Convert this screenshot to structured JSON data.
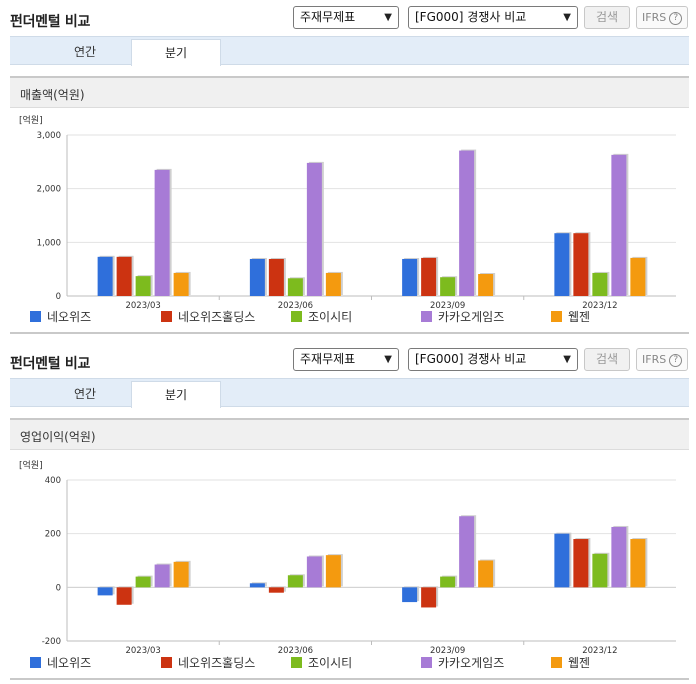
{
  "colors": {
    "series": [
      "#2f6fdb",
      "#cc3311",
      "#7dbb1e",
      "#a77bd6",
      "#f49a0f"
    ]
  },
  "sections": [
    {
      "title": "펀더멘털 비교",
      "select_type": "주재무제표",
      "select_compare": "[FG000] 경쟁사 비교",
      "search_label": "검색",
      "ifrs_label": "IFRS",
      "ifrs_help_icon": "question-circle-icon",
      "tabs": [
        {
          "label": "연간"
        },
        {
          "label": "분기",
          "active": true
        }
      ],
      "panel_title": "매출액(억원)"
    },
    {
      "title": "펀더멘털 비교",
      "select_type": "주재무제표",
      "select_compare": "[FG000] 경쟁사 비교",
      "search_label": "검색",
      "ifrs_label": "IFRS",
      "ifrs_help_icon": "question-circle-icon",
      "tabs": [
        {
          "label": "연간"
        },
        {
          "label": "분기",
          "active": true
        }
      ],
      "panel_title": "영업이익(억원)"
    }
  ],
  "chart_data": [
    {
      "type": "bar",
      "unit_label": "[억원]",
      "categories": [
        "2023/03",
        "2023/06",
        "2023/09",
        "2023/12"
      ],
      "ylim": [
        0,
        3000
      ],
      "yticks": [
        0,
        1000,
        2000,
        3000
      ],
      "ytick_labels": [
        "0",
        "1,000",
        "2,000",
        "3,000"
      ],
      "grid": true,
      "legend_position": "bottom",
      "series": [
        {
          "name": "네오위즈",
          "values": [
            730,
            690,
            690,
            1170
          ]
        },
        {
          "name": "네오위즈홀딩스",
          "values": [
            730,
            690,
            710,
            1170
          ]
        },
        {
          "name": "조이시티",
          "values": [
            370,
            330,
            350,
            430
          ]
        },
        {
          "name": "카카오게임즈",
          "values": [
            2350,
            2480,
            2710,
            2630
          ]
        },
        {
          "name": "웹젠",
          "values": [
            430,
            430,
            410,
            710
          ]
        }
      ]
    },
    {
      "type": "bar",
      "unit_label": "[억원]",
      "categories": [
        "2023/03",
        "2023/06",
        "2023/09",
        "2023/12"
      ],
      "ylim": [
        -200,
        400
      ],
      "yticks": [
        -200,
        0,
        200,
        400
      ],
      "ytick_labels": [
        "-200",
        "0",
        "200",
        "400"
      ],
      "grid": true,
      "legend_position": "bottom",
      "series": [
        {
          "name": "네오위즈",
          "values": [
            -30,
            15,
            -55,
            200
          ]
        },
        {
          "name": "네오위즈홀딩스",
          "values": [
            -65,
            -20,
            -75,
            180
          ]
        },
        {
          "name": "조이시티",
          "values": [
            40,
            45,
            40,
            125
          ]
        },
        {
          "name": "카카오게임즈",
          "values": [
            85,
            115,
            265,
            225
          ]
        },
        {
          "name": "웹젠",
          "values": [
            95,
            120,
            100,
            180
          ]
        }
      ]
    }
  ]
}
